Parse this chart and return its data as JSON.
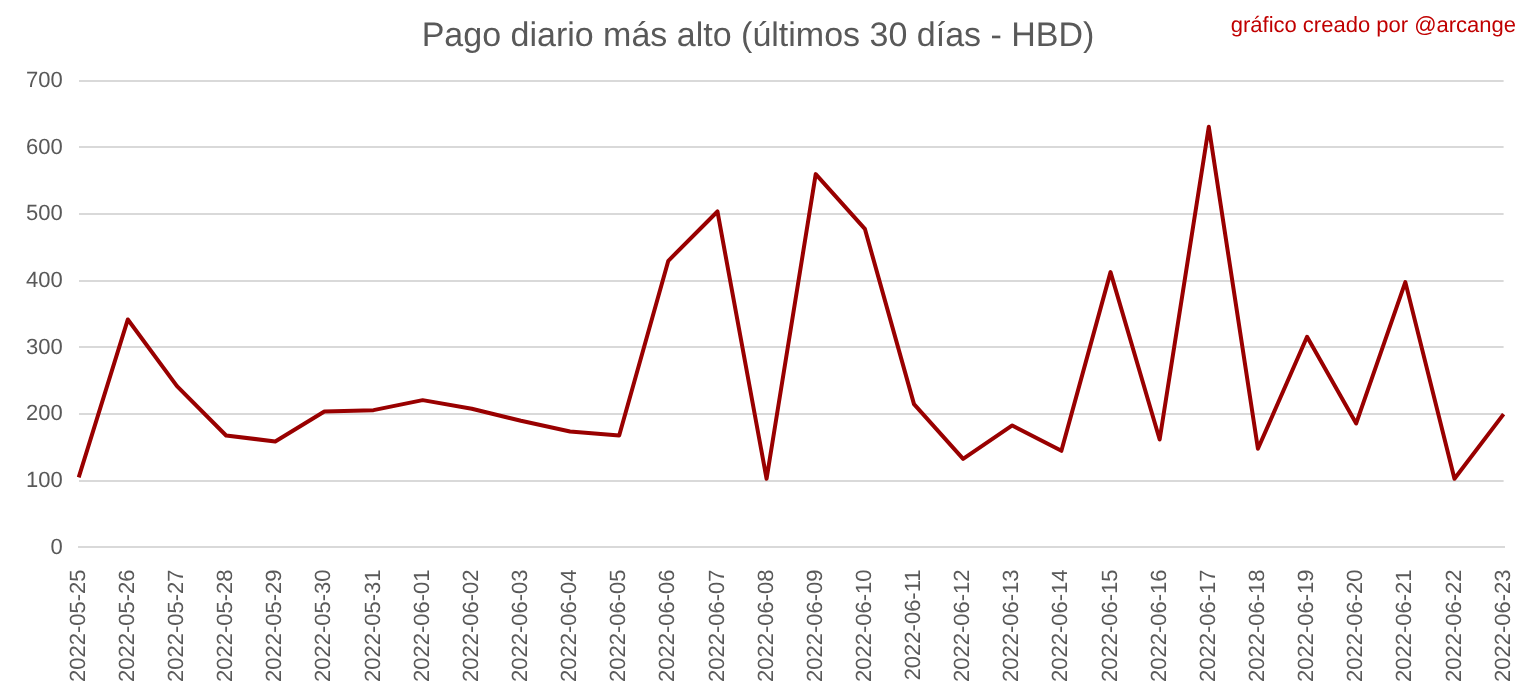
{
  "chart_data": {
    "type": "line",
    "title": "Pago diario más alto (últimos 30 días - HBD)",
    "annotations": [
      "gráfico creado por @arcange"
    ],
    "categories": [
      "2022-05-25",
      "2022-05-26",
      "2022-05-27",
      "2022-05-28",
      "2022-05-29",
      "2022-05-30",
      "2022-05-31",
      "2022-06-01",
      "2022-06-02",
      "2022-06-03",
      "2022-06-04",
      "2022-06-05",
      "2022-06-06",
      "2022-06-07",
      "2022-06-08",
      "2022-06-09",
      "2022-06-10",
      "2022-06-11",
      "2022-06-12",
      "2022-06-13",
      "2022-06-14",
      "2022-06-15",
      "2022-06-16",
      "2022-06-17",
      "2022-06-18",
      "2022-06-19",
      "2022-06-20",
      "2022-06-21",
      "2022-06-22",
      "2022-06-23"
    ],
    "series": [
      {
        "color": "#990000",
        "values": [
          105,
          342,
          242,
          168,
          159,
          204,
          206,
          221,
          208,
          190,
          174,
          168,
          430,
          504,
          103,
          560,
          478,
          215,
          133,
          183,
          145,
          413,
          162,
          631,
          148,
          316,
          186,
          398,
          103,
          200
        ]
      }
    ],
    "ylim": [
      0,
      700
    ],
    "yticks": [
      0,
      100,
      200,
      300,
      400,
      500,
      600,
      700
    ],
    "grid": "y",
    "legend": false,
    "marker": "none",
    "line_style": "solid"
  }
}
